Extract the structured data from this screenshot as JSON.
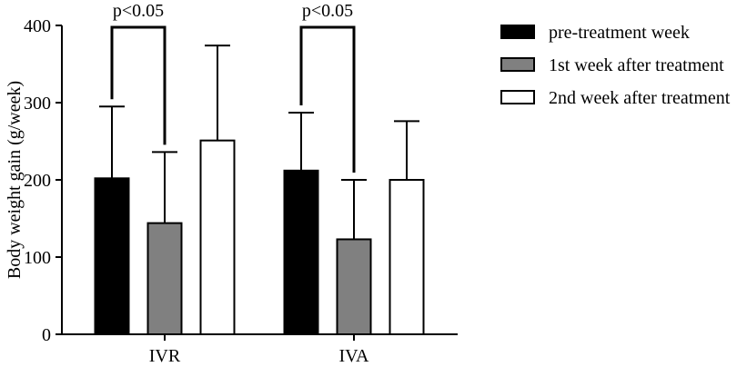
{
  "chart_data": {
    "type": "bar",
    "title": "",
    "xlabel": "",
    "ylabel": "Body weight gain (g/week)",
    "ylim": [
      0,
      400
    ],
    "yticks": [
      0,
      100,
      200,
      300,
      400
    ],
    "grid": false,
    "legend_position": "top-right",
    "categories": [
      "IVR",
      "IVA"
    ],
    "series": [
      {
        "name": "pre-treatment week",
        "color": "#000000",
        "values": [
          202,
          212
        ],
        "errors": [
          93,
          75
        ]
      },
      {
        "name": "1st week after treatment",
        "color": "#808080",
        "values": [
          144,
          123
        ],
        "errors": [
          92,
          77
        ]
      },
      {
        "name": "2nd week after treatment",
        "color": "#ffffff",
        "values": [
          251,
          200
        ],
        "errors": [
          123,
          76
        ]
      }
    ],
    "annotations": [
      {
        "text": "p<0.05",
        "category": "IVR",
        "between": [
          0,
          1
        ]
      },
      {
        "text": "p<0.05",
        "category": "IVA",
        "between": [
          0,
          1
        ]
      }
    ]
  }
}
